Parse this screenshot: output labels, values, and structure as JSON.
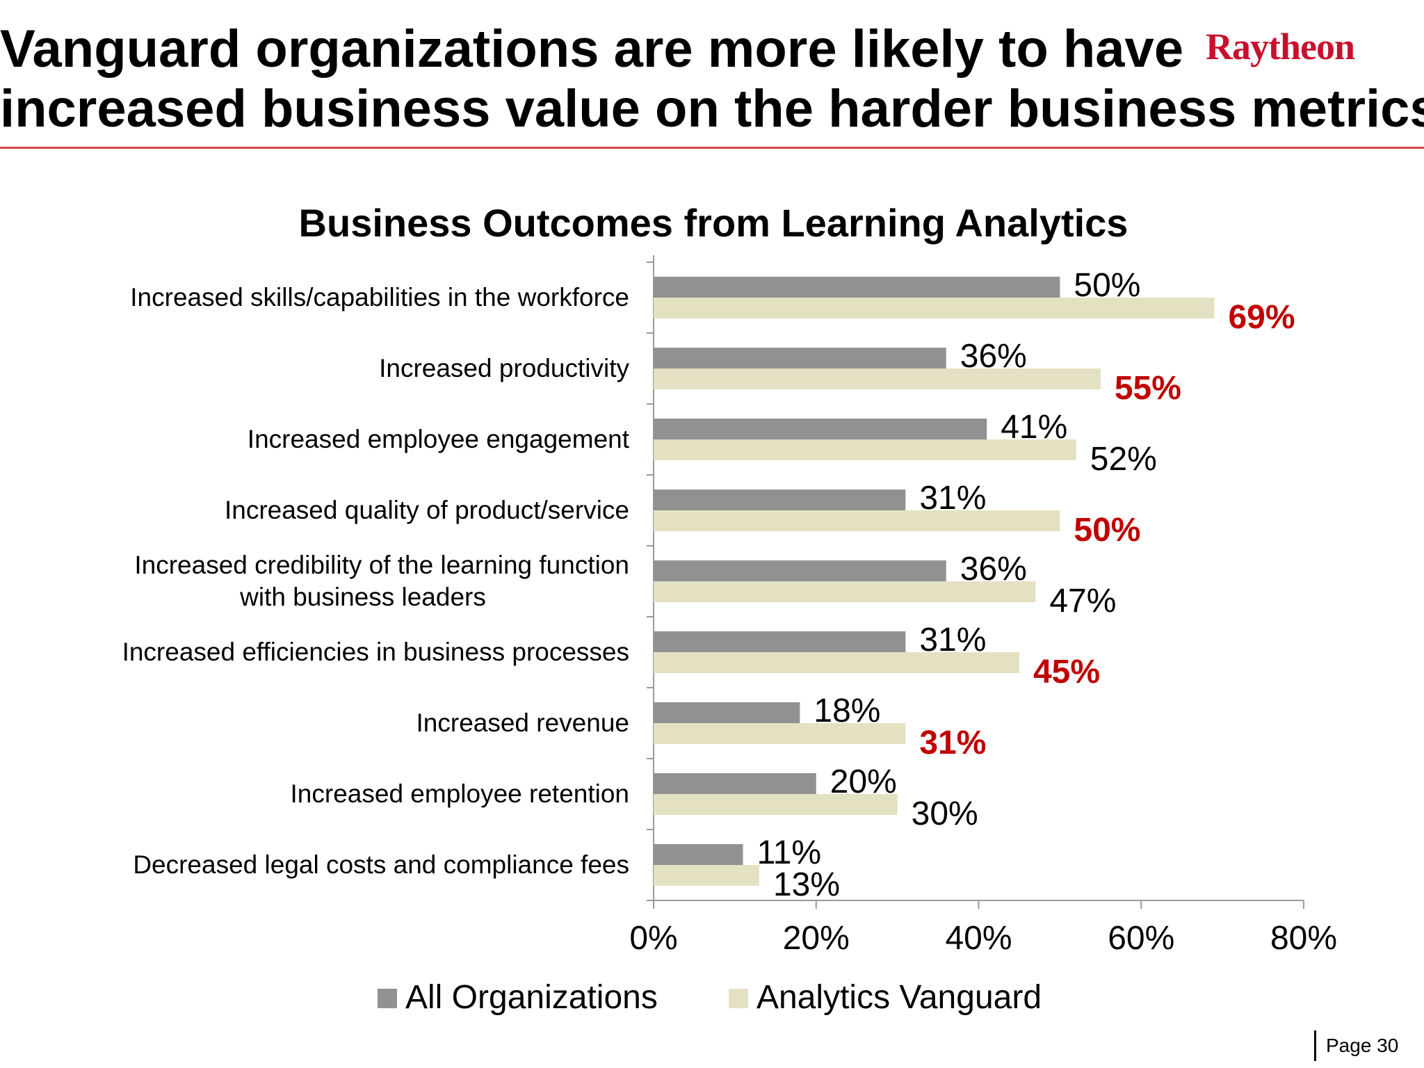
{
  "slide": {
    "title_line1": "Vanguard organizations are more likely to have",
    "title_line2": "increased business value on the harder business metrics",
    "logo_text": "Raytheon",
    "page_label": "Page 30"
  },
  "colors": {
    "all_orgs": "#919191",
    "vanguard": "#e3e1c2",
    "highlight": "#c00000",
    "rule": "#d9434b",
    "logo": "#c8102e"
  },
  "chart_data": {
    "type": "bar",
    "orientation": "horizontal",
    "title": "Business Outcomes from Learning Analytics",
    "categories": [
      [
        "Increased skills/capabilities in the workforce"
      ],
      [
        "Increased productivity"
      ],
      [
        "Increased employee engagement"
      ],
      [
        "Increased quality of product/service"
      ],
      [
        "Increased credibility of the learning function",
        "with business leaders"
      ],
      [
        "Increased efficiencies in business processes"
      ],
      [
        "Increased revenue"
      ],
      [
        "Increased employee retention"
      ],
      [
        "Decreased legal costs and compliance fees"
      ]
    ],
    "series": [
      {
        "name": "All Organizations",
        "values": [
          50,
          36,
          41,
          31,
          36,
          31,
          18,
          20,
          11
        ],
        "color": "#919191",
        "labels": [
          "50%",
          "36%",
          "41%",
          "31%",
          "36%",
          "31%",
          "18%",
          "20%",
          "11%"
        ],
        "highlight": [
          false,
          false,
          false,
          false,
          false,
          false,
          false,
          false,
          false
        ]
      },
      {
        "name": "Analytics Vanguard",
        "values": [
          69,
          55,
          52,
          50,
          47,
          45,
          31,
          30,
          13
        ],
        "color": "#e3e1c2",
        "labels": [
          "69%",
          "55%",
          "52%",
          "50%",
          "47%",
          "45%",
          "31%",
          "30%",
          "13%"
        ],
        "highlight": [
          true,
          true,
          false,
          true,
          false,
          true,
          true,
          false,
          false
        ]
      }
    ],
    "xlim": [
      0,
      80
    ],
    "xticks": [
      0,
      20,
      40,
      60,
      80
    ],
    "xtick_labels": [
      "0%",
      "20%",
      "40%",
      "60%",
      "80%"
    ],
    "legend_position": "bottom",
    "grid": false
  }
}
